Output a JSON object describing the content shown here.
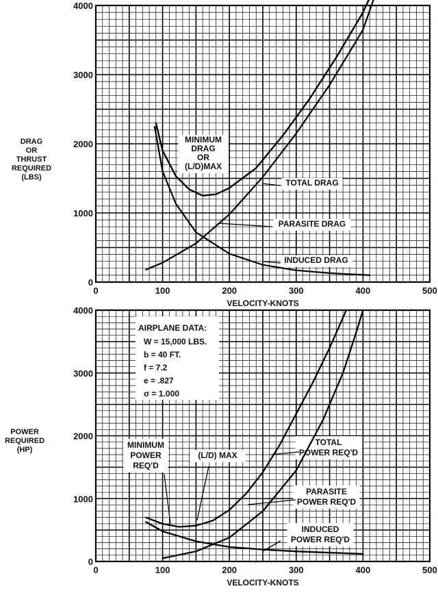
{
  "chart_data": [
    {
      "type": "line",
      "xlabel": "VELOCITY-KNOTS",
      "ylabel": [
        "DRAG",
        "OR",
        "THRUST",
        "REQUIRED",
        "(LBS)"
      ],
      "xlim": [
        0,
        500
      ],
      "ylim": [
        0,
        4000
      ],
      "xticks": [
        "0",
        "100",
        "200",
        "300",
        "400",
        "500"
      ],
      "yticks": [
        "0",
        "1000",
        "2000",
        "3000",
        "4000"
      ],
      "grid": true,
      "series": [
        {
          "name": "TOTAL DRAG",
          "points": [
            [
              90,
              2300
            ],
            [
              100,
              1900
            ],
            [
              120,
              1530
            ],
            [
              140,
              1340
            ],
            [
              160,
              1250
            ],
            [
              180,
              1270
            ],
            [
              200,
              1360
            ],
            [
              240,
              1650
            ],
            [
              280,
              2120
            ],
            [
              320,
              2650
            ],
            [
              360,
              3250
            ],
            [
              400,
              3900
            ],
            [
              420,
              4320
            ]
          ]
        },
        {
          "name": "PARASITE DRAG",
          "points": [
            [
              75,
              180
            ],
            [
              100,
              280
            ],
            [
              150,
              560
            ],
            [
              200,
              980
            ],
            [
              250,
              1520
            ],
            [
              300,
              2150
            ],
            [
              350,
              2850
            ],
            [
              400,
              3650
            ],
            [
              420,
              4200
            ]
          ]
        },
        {
          "name": "INDUCED DRAG",
          "points": [
            [
              88,
              2250
            ],
            [
              100,
              1600
            ],
            [
              120,
              1130
            ],
            [
              150,
              720
            ],
            [
              200,
              410
            ],
            [
              250,
              250
            ],
            [
              300,
              170
            ],
            [
              350,
              130
            ],
            [
              410,
              100
            ]
          ]
        }
      ],
      "annotations": [
        {
          "lines": [
            "MINIMUM",
            "DRAG",
            "OR",
            "(L/D)MAX"
          ]
        },
        {
          "text": "TOTAL DRAG"
        },
        {
          "text": "PARASITE DRAG"
        },
        {
          "text": "INDUCED DRAG"
        }
      ]
    },
    {
      "type": "line",
      "xlabel": "VELOCITY-KNOTS",
      "ylabel": [
        "POWER",
        "REQUIRED",
        "(HP)"
      ],
      "xlim": [
        0,
        500
      ],
      "ylim": [
        0,
        4000
      ],
      "xticks": [
        "0",
        "100",
        "200",
        "300",
        "400",
        "500"
      ],
      "yticks": [
        "0",
        "1000",
        "2000",
        "3000",
        "4000"
      ],
      "grid": true,
      "series": [
        {
          "name": "TOTAL POWER REQ'D",
          "points": [
            [
              75,
              700
            ],
            [
              100,
              600
            ],
            [
              125,
              550
            ],
            [
              150,
              570
            ],
            [
              175,
              650
            ],
            [
              200,
              820
            ],
            [
              225,
              1080
            ],
            [
              250,
              1420
            ],
            [
              275,
              1850
            ],
            [
              300,
              2350
            ],
            [
              325,
              2850
            ],
            [
              350,
              3400
            ],
            [
              375,
              4000
            ]
          ]
        },
        {
          "name": "PARASITE POWER REQ'D",
          "points": [
            [
              100,
              50
            ],
            [
              150,
              160
            ],
            [
              200,
              380
            ],
            [
              250,
              800
            ],
            [
              300,
              1450
            ],
            [
              340,
              2250
            ],
            [
              370,
              3000
            ],
            [
              390,
              3650
            ],
            [
              400,
              4000
            ]
          ]
        },
        {
          "name": "INDUCED POWER REQ'D",
          "points": [
            [
              75,
              630
            ],
            [
              100,
              480
            ],
            [
              150,
              320
            ],
            [
              200,
              230
            ],
            [
              250,
              190
            ],
            [
              300,
              160
            ],
            [
              350,
              140
            ],
            [
              400,
              120
            ]
          ]
        }
      ],
      "airplane_data": {
        "title": "AIRPLANE DATA:",
        "lines": [
          "W = 15,000 LBS.",
          "b = 40 FT.",
          "f = 7.2",
          "e = .827",
          "σ = 1.000"
        ]
      },
      "annotations": [
        {
          "lines": [
            "MINIMUM",
            "POWER",
            "REQ'D"
          ]
        },
        {
          "lines": [
            "(L/D) MAX"
          ]
        },
        {
          "lines": [
            "TOTAL",
            "POWER REQ'D"
          ]
        },
        {
          "lines": [
            "PARASITE",
            "POWER REQ'D"
          ]
        },
        {
          "lines": [
            "INDUCED",
            "POWER REQ'D"
          ]
        }
      ]
    }
  ]
}
